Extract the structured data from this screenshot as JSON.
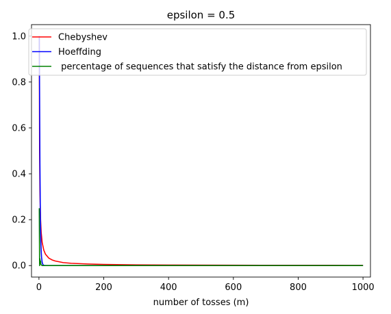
{
  "chart_data": {
    "type": "line",
    "title": "epsilon = 0.5",
    "xlabel": "number of tosses (m)",
    "ylabel": "",
    "xlim": [
      -23,
      1023
    ],
    "ylim": [
      -0.05,
      1.05
    ],
    "xticks": [
      0,
      200,
      400,
      600,
      800,
      1000
    ],
    "yticks": [
      0.0,
      0.2,
      0.4,
      0.6,
      0.8,
      1.0
    ],
    "grid": false,
    "legend_position": "top-right",
    "series": [
      {
        "name": "Chebyshev",
        "color": "#ff0000",
        "formula": "min(1, 1/(4*m*eps^2))",
        "x": [
          1,
          2,
          3,
          4,
          5,
          7,
          10,
          15,
          20,
          30,
          40,
          50,
          75,
          100,
          150,
          200,
          300,
          400,
          500,
          600,
          700,
          800,
          900,
          1000
        ],
        "values": [
          1.0,
          0.5,
          0.333,
          0.25,
          0.2,
          0.143,
          0.1,
          0.067,
          0.05,
          0.033,
          0.025,
          0.02,
          0.013,
          0.01,
          0.007,
          0.005,
          0.003,
          0.0025,
          0.002,
          0.0017,
          0.0014,
          0.0013,
          0.0011,
          0.001
        ]
      },
      {
        "name": "Hoeffding",
        "color": "#0000ff",
        "formula": "min(1, 2*exp(-2*m*eps^2))",
        "x": [
          1,
          2,
          3,
          4,
          5,
          6,
          7,
          8,
          10,
          12,
          15,
          20,
          30,
          50,
          100,
          200,
          500,
          1000
        ],
        "values": [
          1.0,
          0.736,
          0.446,
          0.271,
          0.164,
          0.0996,
          0.0604,
          0.0366,
          0.0135,
          0.005,
          0.0011,
          0.0001,
          0.0,
          0.0,
          0.0,
          0.0,
          0.0,
          0.0
        ]
      },
      {
        "name": " percentage of sequences that satisfy the distance from epsilon",
        "color": "#008000",
        "x": [
          1,
          2,
          3,
          4,
          5,
          6,
          8,
          10,
          15,
          20,
          50,
          100,
          500,
          1000
        ],
        "values": [
          0.25,
          0.0,
          0.03,
          0.01,
          0.02,
          0.005,
          0.002,
          0.0,
          0.0,
          0.0,
          0.0,
          0.0,
          0.0,
          0.0
        ]
      }
    ]
  }
}
